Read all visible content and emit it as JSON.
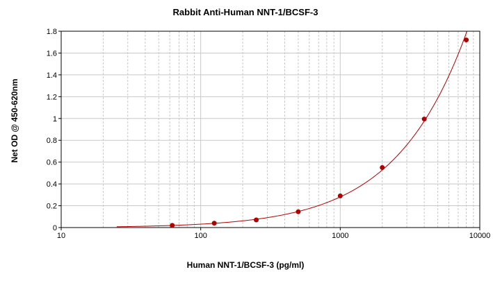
{
  "chart_data": {
    "type": "scatter",
    "title": "Rabbit Anti-Human NNT-1/BCSF-3",
    "xlabel": "Human NNT-1/BCSF-3 (pg/ml)",
    "ylabel": "Net OD @ 450-620nm",
    "x_scale": "log",
    "xlim": [
      10,
      10000
    ],
    "ylim": [
      0,
      1.8
    ],
    "x_ticks": [
      "10",
      "100",
      "1000",
      "10000"
    ],
    "y_ticks": [
      "0",
      "0.2",
      "0.4",
      "0.6",
      "0.8",
      "1",
      "1.2",
      "1.4",
      "1.6",
      "1.8"
    ],
    "grid": true,
    "series": [
      {
        "points": [
          {
            "x": 62.5,
            "y": 0.02
          },
          {
            "x": 125,
            "y": 0.04
          },
          {
            "x": 250,
            "y": 0.07
          },
          {
            "x": 500,
            "y": 0.145
          },
          {
            "x": 1000,
            "y": 0.29
          },
          {
            "x": 2000,
            "y": 0.55
          },
          {
            "x": 4000,
            "y": 0.995
          },
          {
            "x": 8000,
            "y": 1.72
          }
        ]
      }
    ],
    "colors": {
      "marker": "#b00000",
      "curve": "#b00000",
      "grid": "#c8c8c8",
      "axis": "#000000"
    }
  }
}
